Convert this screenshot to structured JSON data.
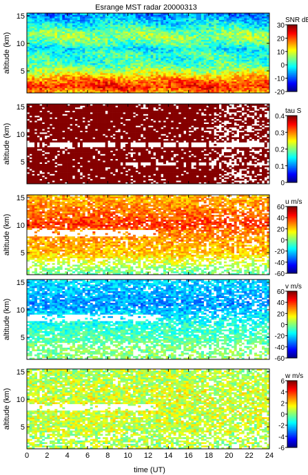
{
  "chart_data": {
    "type": "heatmap",
    "title": "Esrange MST radar 20000313",
    "xlabel": "time (UT)",
    "xlim": [
      0,
      24
    ],
    "xticks": [
      0,
      2,
      4,
      6,
      8,
      10,
      12,
      14,
      16,
      18,
      20,
      22,
      24
    ],
    "shared_x": true,
    "panels": [
      {
        "name": "snr",
        "ylabel": "altitude (km)",
        "ylim": [
          1,
          15.5
        ],
        "yticks": [
          5,
          10,
          15
        ],
        "colorbar_label": "SNR dB",
        "clim": [
          -20,
          30
        ],
        "cticks": [
          -20,
          -10,
          0,
          10,
          20,
          30
        ],
        "profile": [
          {
            "alt": 1,
            "value": 14
          },
          {
            "alt": 2,
            "value": 22
          },
          {
            "alt": 3,
            "value": 20
          },
          {
            "alt": 4,
            "value": 14
          },
          {
            "alt": 5,
            "value": 8
          },
          {
            "alt": 6,
            "value": 3
          },
          {
            "alt": 7,
            "value": 1
          },
          {
            "alt": 8,
            "value": 2
          },
          {
            "alt": 9,
            "value": -2
          },
          {
            "alt": 10,
            "value": 3
          },
          {
            "alt": 11,
            "value": 6
          },
          {
            "alt": 12,
            "value": 5
          },
          {
            "alt": 13,
            "value": 0
          },
          {
            "alt": 14,
            "value": -3
          },
          {
            "alt": 15,
            "value": -6
          }
        ]
      },
      {
        "name": "tau",
        "ylabel": "altitude (km)",
        "ylim": [
          1,
          15.5
        ],
        "yticks": [
          5,
          10,
          15
        ],
        "colorbar_label": "tau S",
        "clim": [
          0,
          0.4
        ],
        "cticks": [
          0,
          0.1,
          0.2,
          0.3,
          0.4
        ],
        "profile": [
          {
            "alt": 1,
            "value": 0.4
          },
          {
            "alt": 8,
            "value": 0.4
          },
          {
            "alt": 15,
            "value": 0.4
          }
        ]
      },
      {
        "name": "u",
        "ylabel": "altitude (km)",
        "ylim": [
          1,
          15.5
        ],
        "yticks": [
          5,
          10,
          15
        ],
        "colorbar_label": "u m/s",
        "clim": [
          -60,
          60
        ],
        "cticks": [
          -60,
          -40,
          -20,
          0,
          20,
          40,
          60
        ],
        "profile": [
          {
            "alt": 1,
            "value": -5
          },
          {
            "alt": 3,
            "value": 8
          },
          {
            "alt": 5,
            "value": 22
          },
          {
            "alt": 7,
            "value": 26
          },
          {
            "alt": 9,
            "value": 30
          },
          {
            "alt": 10,
            "value": 40
          },
          {
            "alt": 11,
            "value": 36
          },
          {
            "alt": 13,
            "value": 30
          },
          {
            "alt": 15,
            "value": 24
          }
        ]
      },
      {
        "name": "v",
        "ylabel": "altitude (km)",
        "ylim": [
          1,
          15.5
        ],
        "yticks": [
          5,
          10,
          15
        ],
        "colorbar_label": "v m/s",
        "clim": [
          -60,
          60
        ],
        "cticks": [
          -60,
          -40,
          -20,
          0,
          20,
          40,
          60
        ],
        "profile": [
          {
            "alt": 1,
            "value": 2
          },
          {
            "alt": 3,
            "value": 0
          },
          {
            "alt": 5,
            "value": -6
          },
          {
            "alt": 7,
            "value": -10
          },
          {
            "alt": 9,
            "value": -18
          },
          {
            "alt": 11,
            "value": -28
          },
          {
            "alt": 13,
            "value": -24
          },
          {
            "alt": 15,
            "value": -20
          }
        ]
      },
      {
        "name": "w",
        "ylabel": "altitude (km)",
        "ylim": [
          1,
          15.5
        ],
        "yticks": [
          5,
          10,
          15
        ],
        "colorbar_label": "w m/s",
        "clim": [
          -6,
          6
        ],
        "cticks": [
          -6,
          -4,
          -2,
          0,
          2,
          4,
          6
        ],
        "profile": [
          {
            "alt": 1,
            "value": 0.5
          },
          {
            "alt": 5,
            "value": 0.8
          },
          {
            "alt": 10,
            "value": 1.0
          },
          {
            "alt": 15,
            "value": 0.6
          }
        ]
      }
    ]
  }
}
